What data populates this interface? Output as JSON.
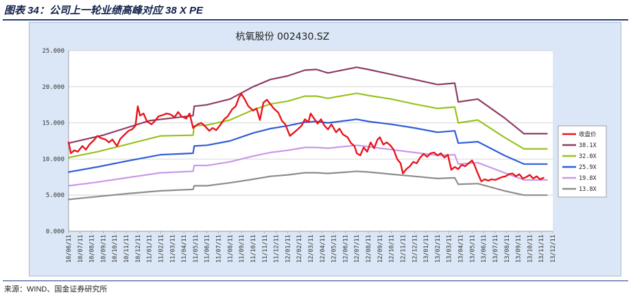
{
  "page": {
    "title": "图表 34：公司上一轮业绩高峰对应 38 X PE",
    "source": "来源：WIND、国金证券研究所"
  },
  "chart_data": {
    "type": "line",
    "title": "杭氧股份 002430.SZ",
    "xlabel": "",
    "ylabel": "",
    "ylim": [
      0,
      25
    ],
    "yticks": [
      "0.000",
      "5.000",
      "10.000",
      "15.000",
      "20.000",
      "25.000"
    ],
    "ytick_values": [
      0,
      5,
      10,
      15,
      20,
      25
    ],
    "x_range": [
      0,
      42
    ],
    "xticks": [
      "10/06/11",
      "10/07/11",
      "10/08/11",
      "10/09/11",
      "10/10/11",
      "10/11/11",
      "10/12/11",
      "11/01/11",
      "11/02/11",
      "11/03/11",
      "11/04/11",
      "11/05/11",
      "11/06/11",
      "11/07/11",
      "11/08/11",
      "11/09/11",
      "11/10/11",
      "11/11/11",
      "11/12/11",
      "12/01/11",
      "12/02/11",
      "12/03/11",
      "12/04/11",
      "12/05/11",
      "12/06/11",
      "12/07/11",
      "12/08/11",
      "12/09/11",
      "12/10/11",
      "12/11/11",
      "12/12/11",
      "13/01/11",
      "13/02/11",
      "13/03/11",
      "13/04/11",
      "13/05/11",
      "13/06/11",
      "13/07/11",
      "13/08/11",
      "13/09/11",
      "13/10/11",
      "13/11/11",
      "13/12/11"
    ],
    "grid": "horizontal",
    "legend": "right",
    "series": [
      {
        "name": "收盘价",
        "color": "#e8141c",
        "points": [
          [
            0,
            12.3
          ],
          [
            0.2,
            10.8
          ],
          [
            0.5,
            11.2
          ],
          [
            0.8,
            11.0
          ],
          [
            1.2,
            11.8
          ],
          [
            1.5,
            11.3
          ],
          [
            1.8,
            12.0
          ],
          [
            2.2,
            12.6
          ],
          [
            2.5,
            13.2
          ],
          [
            2.8,
            12.9
          ],
          [
            3.2,
            12.7
          ],
          [
            3.5,
            12.3
          ],
          [
            3.8,
            12.7
          ],
          [
            4.2,
            11.8
          ],
          [
            4.5,
            12.8
          ],
          [
            4.8,
            13.3
          ],
          [
            5.2,
            13.9
          ],
          [
            5.5,
            14.1
          ],
          [
            5.8,
            14.6
          ],
          [
            6.0,
            17.3
          ],
          [
            6.2,
            16.0
          ],
          [
            6.5,
            16.3
          ],
          [
            6.8,
            15.2
          ],
          [
            7.2,
            14.8
          ],
          [
            7.5,
            15.3
          ],
          [
            7.8,
            15.9
          ],
          [
            8.2,
            16.1
          ],
          [
            8.5,
            16.3
          ],
          [
            8.8,
            16.2
          ],
          [
            9.2,
            15.8
          ],
          [
            9.5,
            16.5
          ],
          [
            9.8,
            15.9
          ],
          [
            10.2,
            15.6
          ],
          [
            10.5,
            16.3
          ],
          [
            10.8,
            14.3
          ],
          [
            11.2,
            14.8
          ],
          [
            11.5,
            15.0
          ],
          [
            11.8,
            14.6
          ],
          [
            12.2,
            13.9
          ],
          [
            12.5,
            14.3
          ],
          [
            12.8,
            14.0
          ],
          [
            13.2,
            14.8
          ],
          [
            13.5,
            15.5
          ],
          [
            13.8,
            15.9
          ],
          [
            14.2,
            16.9
          ],
          [
            14.5,
            17.3
          ],
          [
            14.8,
            18.6
          ],
          [
            15.0,
            19.0
          ],
          [
            15.3,
            18.2
          ],
          [
            15.6,
            17.3
          ],
          [
            16.0,
            16.7
          ],
          [
            16.3,
            17.0
          ],
          [
            16.6,
            15.4
          ],
          [
            16.9,
            17.8
          ],
          [
            17.2,
            18.2
          ],
          [
            17.5,
            17.6
          ],
          [
            17.8,
            17.0
          ],
          [
            18.2,
            16.4
          ],
          [
            18.5,
            15.3
          ],
          [
            18.8,
            14.8
          ],
          [
            19.2,
            13.2
          ],
          [
            19.5,
            13.6
          ],
          [
            19.8,
            14.0
          ],
          [
            20.2,
            14.6
          ],
          [
            20.5,
            15.5
          ],
          [
            20.8,
            15.1
          ],
          [
            21.0,
            16.3
          ],
          [
            21.3,
            15.6
          ],
          [
            21.6,
            14.9
          ],
          [
            21.9,
            15.5
          ],
          [
            22.2,
            14.6
          ],
          [
            22.5,
            14.1
          ],
          [
            22.8,
            14.8
          ],
          [
            23.2,
            13.7
          ],
          [
            23.5,
            14.2
          ],
          [
            23.8,
            13.4
          ],
          [
            24.2,
            13.0
          ],
          [
            24.5,
            12.2
          ],
          [
            24.8,
            11.8
          ],
          [
            25.0,
            10.8
          ],
          [
            25.3,
            10.5
          ],
          [
            25.6,
            11.6
          ],
          [
            25.9,
            11.0
          ],
          [
            26.2,
            12.3
          ],
          [
            26.5,
            11.5
          ],
          [
            26.8,
            12.7
          ],
          [
            27.0,
            13.0
          ],
          [
            27.3,
            12.0
          ],
          [
            27.6,
            12.3
          ],
          [
            27.9,
            11.9
          ],
          [
            28.2,
            11.3
          ],
          [
            28.5,
            10.0
          ],
          [
            28.8,
            9.4
          ],
          [
            29.0,
            8.0
          ],
          [
            29.3,
            8.6
          ],
          [
            29.6,
            9.0
          ],
          [
            29.9,
            9.6
          ],
          [
            30.2,
            9.4
          ],
          [
            30.5,
            10.2
          ],
          [
            30.8,
            10.7
          ],
          [
            31.1,
            10.3
          ],
          [
            31.4,
            10.8
          ],
          [
            31.7,
            10.9
          ],
          [
            32.0,
            10.5
          ],
          [
            32.3,
            10.8
          ],
          [
            32.6,
            10.2
          ],
          [
            32.9,
            10.6
          ],
          [
            33.2,
            8.5
          ],
          [
            33.5,
            8.9
          ],
          [
            33.8,
            8.6
          ],
          [
            34.1,
            9.2
          ],
          [
            34.4,
            9.0
          ],
          [
            34.7,
            9.4
          ],
          [
            35.0,
            9.8
          ],
          [
            35.2,
            9.2
          ],
          [
            35.5,
            8.0
          ],
          [
            35.8,
            6.9
          ],
          [
            36.1,
            7.2
          ],
          [
            36.4,
            7.0
          ],
          [
            36.7,
            7.2
          ],
          [
            37.0,
            7.1
          ],
          [
            37.3,
            7.3
          ],
          [
            37.6,
            7.5
          ],
          [
            37.9,
            7.6
          ],
          [
            38.2,
            7.9
          ],
          [
            38.5,
            8.0
          ],
          [
            38.8,
            7.6
          ],
          [
            39.1,
            7.9
          ],
          [
            39.4,
            7.3
          ],
          [
            39.7,
            7.5
          ],
          [
            40.0,
            7.8
          ],
          [
            40.3,
            7.3
          ],
          [
            40.6,
            7.6
          ],
          [
            40.9,
            7.2
          ],
          [
            41.2,
            7.4
          ]
        ]
      },
      {
        "name": "38.1X",
        "color": "#8e3b64",
        "points": [
          [
            0,
            12.2
          ],
          [
            3,
            13.3
          ],
          [
            5,
            14.3
          ],
          [
            7,
            15.3
          ],
          [
            10.8,
            16.0
          ],
          [
            10.9,
            17.3
          ],
          [
            12,
            17.5
          ],
          [
            14,
            18.3
          ],
          [
            16,
            20.0
          ],
          [
            17.5,
            21.0
          ],
          [
            19,
            21.5
          ],
          [
            20.5,
            22.3
          ],
          [
            21.5,
            22.4
          ],
          [
            22.5,
            21.9
          ],
          [
            25,
            22.7
          ],
          [
            26,
            22.4
          ],
          [
            28,
            21.7
          ],
          [
            30,
            21.0
          ],
          [
            32,
            20.3
          ],
          [
            33.5,
            20.5
          ],
          [
            33.8,
            17.9
          ],
          [
            35.5,
            18.3
          ],
          [
            37.8,
            15.7
          ],
          [
            39.5,
            13.5
          ],
          [
            41.5,
            13.5
          ]
        ]
      },
      {
        "name": "32.0X",
        "color": "#99c21c",
        "points": [
          [
            0,
            10.2
          ],
          [
            2.5,
            11.0
          ],
          [
            5,
            12.0
          ],
          [
            8,
            13.2
          ],
          [
            10.8,
            13.3
          ],
          [
            10.9,
            14.6
          ],
          [
            12,
            14.7
          ],
          [
            14,
            15.4
          ],
          [
            16,
            16.8
          ],
          [
            17.5,
            17.6
          ],
          [
            19,
            18.0
          ],
          [
            20.5,
            18.7
          ],
          [
            21.5,
            18.7
          ],
          [
            22.5,
            18.4
          ],
          [
            25,
            19.1
          ],
          [
            26,
            18.8
          ],
          [
            28,
            18.3
          ],
          [
            30,
            17.6
          ],
          [
            32,
            17.0
          ],
          [
            33.5,
            17.2
          ],
          [
            33.8,
            15.0
          ],
          [
            35.5,
            15.4
          ],
          [
            37.8,
            13.0
          ],
          [
            39.5,
            11.4
          ],
          [
            41.5,
            11.4
          ]
        ]
      },
      {
        "name": "25.9X",
        "color": "#2e5bd8",
        "points": [
          [
            0,
            8.2
          ],
          [
            2.5,
            8.9
          ],
          [
            5,
            9.7
          ],
          [
            8,
            10.6
          ],
          [
            10.8,
            10.8
          ],
          [
            10.9,
            11.8
          ],
          [
            12,
            11.9
          ],
          [
            14,
            12.5
          ],
          [
            16,
            13.6
          ],
          [
            17.5,
            14.2
          ],
          [
            19,
            14.6
          ],
          [
            20.5,
            15.1
          ],
          [
            21.5,
            15.2
          ],
          [
            22.5,
            15.0
          ],
          [
            25,
            15.5
          ],
          [
            26,
            15.2
          ],
          [
            28,
            14.8
          ],
          [
            30,
            14.3
          ],
          [
            32,
            13.7
          ],
          [
            33.5,
            13.9
          ],
          [
            33.8,
            12.2
          ],
          [
            35.5,
            12.4
          ],
          [
            37.8,
            10.5
          ],
          [
            39.5,
            9.3
          ],
          [
            41.5,
            9.3
          ]
        ]
      },
      {
        "name": "19.8X",
        "color": "#c998e8",
        "points": [
          [
            0,
            6.3
          ],
          [
            2.5,
            6.8
          ],
          [
            5,
            7.4
          ],
          [
            8,
            8.1
          ],
          [
            10.8,
            8.3
          ],
          [
            10.9,
            9.1
          ],
          [
            12,
            9.1
          ],
          [
            14,
            9.6
          ],
          [
            16,
            10.4
          ],
          [
            17.5,
            10.9
          ],
          [
            19,
            11.2
          ],
          [
            20.5,
            11.6
          ],
          [
            21.5,
            11.6
          ],
          [
            22.5,
            11.5
          ],
          [
            25,
            11.9
          ],
          [
            26,
            11.7
          ],
          [
            28,
            11.3
          ],
          [
            30,
            10.9
          ],
          [
            32,
            10.5
          ],
          [
            33.5,
            10.6
          ],
          [
            33.8,
            9.3
          ],
          [
            35.5,
            9.5
          ],
          [
            37.8,
            8.1
          ],
          [
            39.5,
            7.1
          ],
          [
            41.5,
            7.1
          ]
        ]
      },
      {
        "name": "13.8X",
        "color": "#8c8c8c",
        "points": [
          [
            0,
            4.4
          ],
          [
            2.5,
            4.8
          ],
          [
            5,
            5.2
          ],
          [
            8,
            5.6
          ],
          [
            10.8,
            5.8
          ],
          [
            10.9,
            6.3
          ],
          [
            12,
            6.3
          ],
          [
            14,
            6.7
          ],
          [
            16,
            7.2
          ],
          [
            17.5,
            7.6
          ],
          [
            19,
            7.8
          ],
          [
            20.5,
            8.1
          ],
          [
            21.5,
            8.1
          ],
          [
            22.5,
            8.0
          ],
          [
            25,
            8.3
          ],
          [
            26,
            8.2
          ],
          [
            28,
            7.9
          ],
          [
            30,
            7.6
          ],
          [
            32,
            7.3
          ],
          [
            33.5,
            7.4
          ],
          [
            33.8,
            6.5
          ],
          [
            35.5,
            6.6
          ],
          [
            37.8,
            5.6
          ],
          [
            39.5,
            5.0
          ],
          [
            41.5,
            5.0
          ]
        ]
      }
    ]
  }
}
